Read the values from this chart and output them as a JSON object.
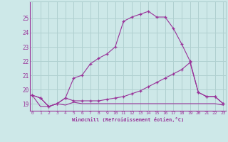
{
  "xlabel": "Windchill (Refroidissement éolien,°C)",
  "background_color": "#cde8e8",
  "grid_color": "#b0d0d0",
  "line_color": "#993399",
  "x_values": [
    0,
    1,
    2,
    3,
    4,
    5,
    6,
    7,
    8,
    9,
    10,
    11,
    12,
    13,
    14,
    15,
    16,
    17,
    18,
    19,
    20,
    21,
    22,
    23
  ],
  "line1": [
    19.6,
    19.4,
    18.8,
    19.0,
    19.4,
    20.8,
    21.0,
    21.8,
    22.2,
    22.5,
    23.0,
    24.8,
    25.1,
    25.3,
    25.5,
    25.1,
    25.1,
    24.3,
    23.2,
    22.0,
    19.8,
    19.5,
    19.5,
    19.0
  ],
  "line2": [
    19.6,
    19.4,
    18.8,
    19.0,
    19.4,
    19.2,
    19.2,
    19.2,
    19.2,
    19.3,
    19.4,
    19.5,
    19.7,
    19.9,
    20.2,
    20.5,
    20.8,
    21.1,
    21.4,
    21.9,
    19.8,
    19.5,
    19.5,
    19.0
  ],
  "line3": [
    19.6,
    18.8,
    18.8,
    19.0,
    18.9,
    19.1,
    19.0,
    19.0,
    19.0,
    19.0,
    19.0,
    19.0,
    19.0,
    19.0,
    19.0,
    19.0,
    19.0,
    19.0,
    19.0,
    19.0,
    19.0,
    19.0,
    19.0,
    18.9
  ],
  "ylim": [
    18.5,
    26.2
  ],
  "xlim": [
    -0.3,
    23.3
  ],
  "yticks": [
    19,
    20,
    21,
    22,
    23,
    24,
    25
  ],
  "xticks": [
    0,
    1,
    2,
    3,
    4,
    5,
    6,
    7,
    8,
    9,
    10,
    11,
    12,
    13,
    14,
    15,
    16,
    17,
    18,
    19,
    20,
    21,
    22,
    23
  ]
}
